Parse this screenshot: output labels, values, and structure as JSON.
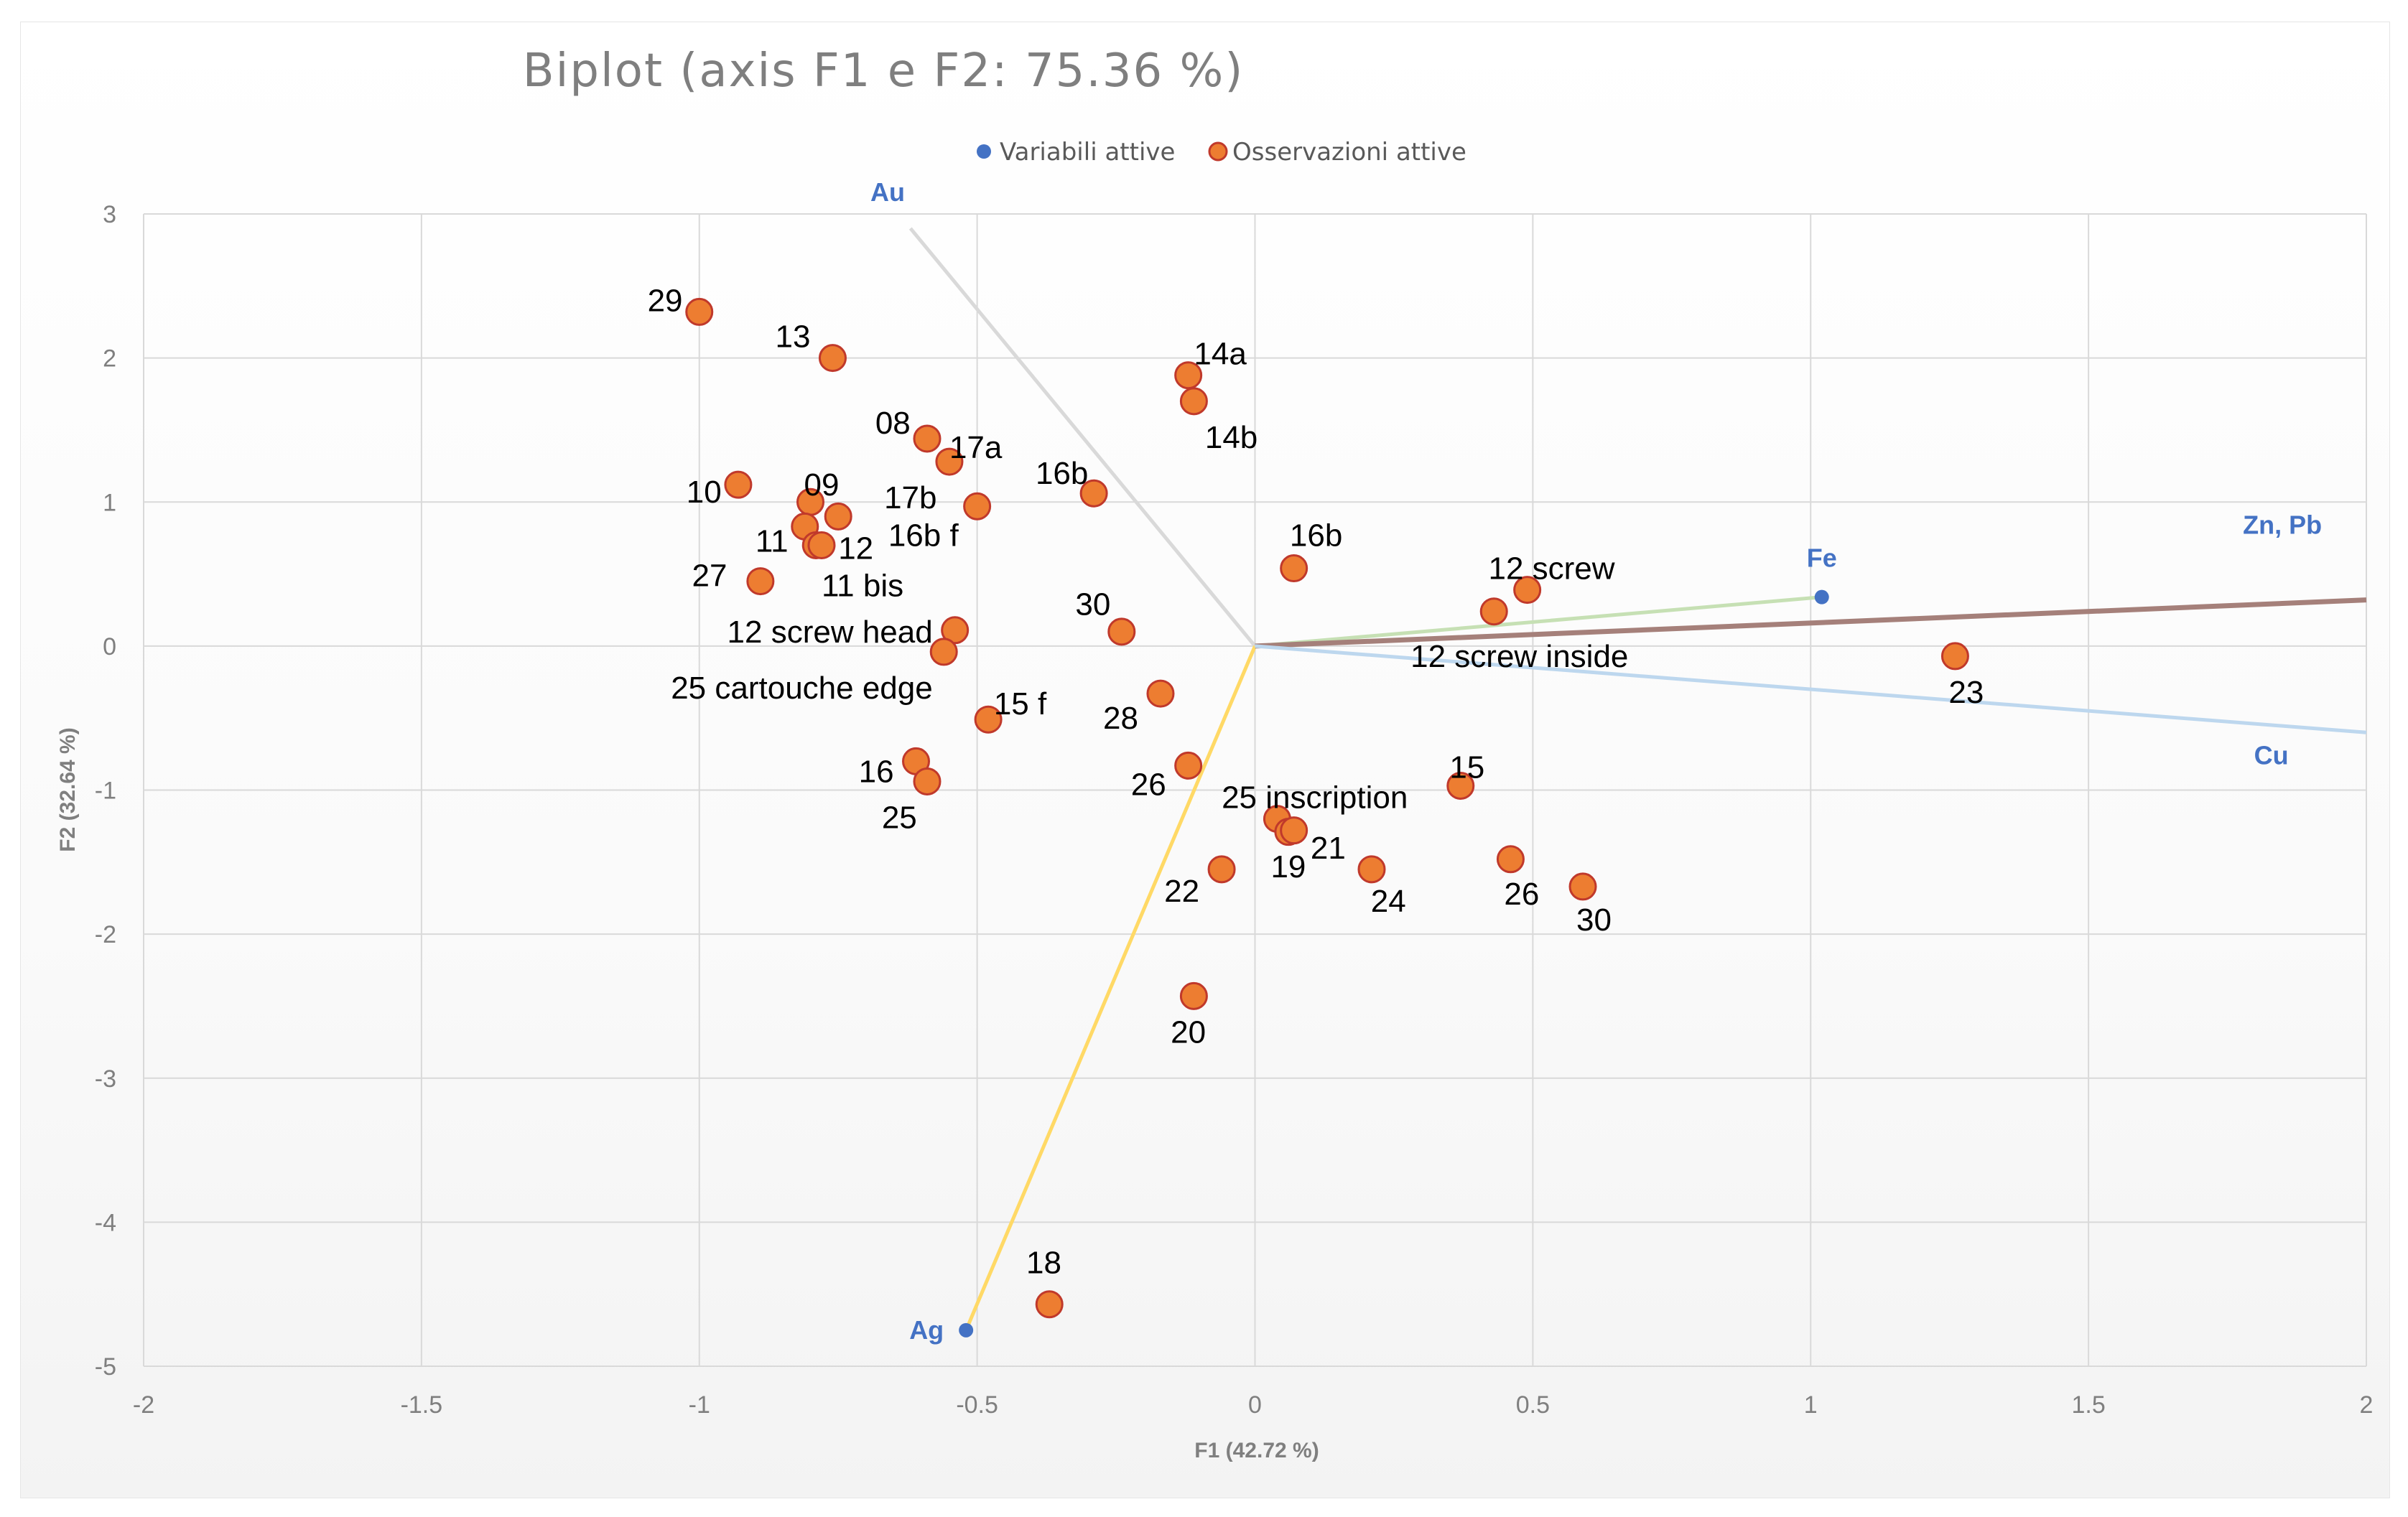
{
  "chart_data": {
    "type": "scatter",
    "title": "Biplot (axis F1 e F2: 75.36 %)",
    "xlabel": "F1 (42.72 %)",
    "ylabel": "F2 (32.64 %)",
    "xlim": [
      -2,
      2
    ],
    "ylim": [
      -5,
      3
    ],
    "x_ticks": [
      -2,
      -1.5,
      -1,
      -0.5,
      0,
      0.5,
      1,
      1.5,
      2
    ],
    "x_tick_labels": [
      "-2",
      "-1.5",
      "-1",
      "-0.5",
      "0",
      "0.5",
      "1",
      "1.5",
      "2"
    ],
    "y_ticks": [
      -5,
      -4,
      -3,
      -2,
      -1,
      0,
      1,
      2,
      3
    ],
    "y_tick_labels": [
      "-5",
      "-4",
      "-3",
      "-2",
      "-1",
      "0",
      "1",
      "2",
      "3"
    ],
    "grid": true,
    "legend": {
      "position": "top-center",
      "entries": [
        {
          "name": "Variabili attive",
          "color": "#4472c4"
        },
        {
          "name": "Osservazioni attive",
          "color": "#ed7d31"
        }
      ]
    },
    "variables": [
      {
        "name": "Au",
        "x": -0.62,
        "y": 2.9,
        "line_color": "#d9d9d9",
        "show_point": false,
        "label_anchor": "end",
        "label_dx": -0.01,
        "label_dy": 0.25
      },
      {
        "name": "Ag",
        "x": -0.52,
        "y": -4.75,
        "line_color": "#ffd966",
        "show_point": true,
        "label_anchor": "end",
        "label_dx": -0.04,
        "label_dy": 0.0
      },
      {
        "name": "Fe",
        "x": 1.02,
        "y": 0.34,
        "line_color": "#c6e0b4",
        "show_point": true,
        "label_anchor": "middle",
        "label_dx": 0.0,
        "label_dy": 0.27
      },
      {
        "name": "Zn, Pb",
        "x": 2.0,
        "y": 0.32,
        "line_color": "#a5807a",
        "show_point": false,
        "label_anchor": "end",
        "label_dx": -0.08,
        "label_dy": 0.52
      },
      {
        "name": "Cu",
        "x": 2.0,
        "y": -0.6,
        "line_color": "#bdd7ee",
        "show_point": false,
        "label_anchor": "end",
        "label_dx": -0.14,
        "label_dy": -0.16
      }
    ],
    "observations": [
      {
        "label": "29",
        "x": -1.0,
        "y": 2.32,
        "lx": -1.03,
        "ly": 2.4,
        "anchor": "end"
      },
      {
        "label": "13",
        "x": -0.76,
        "y": 2.0,
        "lx": -0.8,
        "ly": 2.15,
        "anchor": "end"
      },
      {
        "label": "14a",
        "x": -0.12,
        "y": 1.88,
        "lx": -0.11,
        "ly": 2.03,
        "anchor": "start"
      },
      {
        "label": "14b",
        "x": -0.11,
        "y": 1.7,
        "lx": -0.09,
        "ly": 1.45,
        "anchor": "start"
      },
      {
        "label": "08",
        "x": -0.59,
        "y": 1.44,
        "lx": -0.62,
        "ly": 1.55,
        "anchor": "end"
      },
      {
        "label": "17a",
        "x": -0.55,
        "y": 1.28,
        "lx": -0.55,
        "ly": 1.38,
        "anchor": "start"
      },
      {
        "label": "16b",
        "x": -0.29,
        "y": 1.06,
        "lx": -0.3,
        "ly": 1.2,
        "anchor": "end"
      },
      {
        "label": "10",
        "x": -0.93,
        "y": 1.12,
        "lx": -0.96,
        "ly": 1.07,
        "anchor": "end"
      },
      {
        "label": "09",
        "x": -0.8,
        "y": 1.0,
        "lx": -0.78,
        "ly": 1.12,
        "anchor": "middle"
      },
      {
        "label": "17b",
        "x": -0.75,
        "y": 0.9,
        "lx": -0.62,
        "ly": 1.03,
        "anchor": "middle"
      },
      {
        "label": "16b f",
        "x": -0.5,
        "y": 0.97,
        "lx": -0.66,
        "ly": 0.77,
        "anchor": "start"
      },
      {
        "label": "11",
        "x": -0.81,
        "y": 0.83,
        "lx": -0.84,
        "ly": 0.73,
        "anchor": "end"
      },
      {
        "label": "12",
        "x": -0.79,
        "y": 0.7,
        "lx": -0.75,
        "ly": 0.68,
        "anchor": "start"
      },
      {
        "label": "11 bis",
        "x": -0.78,
        "y": 0.7,
        "lx": -0.78,
        "ly": 0.42,
        "anchor": "start"
      },
      {
        "label": "27",
        "x": -0.89,
        "y": 0.45,
        "lx": -0.95,
        "ly": 0.49,
        "anchor": "end"
      },
      {
        "label": "16b",
        "x": 0.07,
        "y": 0.54,
        "lx": 0.11,
        "ly": 0.77,
        "anchor": "middle"
      },
      {
        "label": "12 screw",
        "x": 0.49,
        "y": 0.39,
        "lx": 0.42,
        "ly": 0.54,
        "anchor": "start"
      },
      {
        "label": "12 screw inside",
        "x": 0.43,
        "y": 0.24,
        "lx": 0.28,
        "ly": -0.07,
        "anchor": "start"
      },
      {
        "label": "30",
        "x": -0.24,
        "y": 0.1,
        "lx": -0.26,
        "ly": 0.29,
        "anchor": "end"
      },
      {
        "label": "12 screw head",
        "x": -0.54,
        "y": 0.11,
        "lx": -0.58,
        "ly": 0.1,
        "anchor": "end"
      },
      {
        "label": "25 cartouche edge",
        "x": -0.56,
        "y": -0.04,
        "lx": -0.58,
        "ly": -0.29,
        "anchor": "end"
      },
      {
        "label": "23",
        "x": 1.26,
        "y": -0.07,
        "lx": 1.28,
        "ly": -0.32,
        "anchor": "middle"
      },
      {
        "label": "15 f",
        "x": -0.48,
        "y": -0.51,
        "lx": -0.47,
        "ly": -0.4,
        "anchor": "start"
      },
      {
        "label": "28",
        "x": -0.17,
        "y": -0.33,
        "lx": -0.21,
        "ly": -0.5,
        "anchor": "end"
      },
      {
        "label": "16",
        "x": -0.61,
        "y": -0.8,
        "lx": -0.65,
        "ly": -0.87,
        "anchor": "end"
      },
      {
        "label": "25",
        "x": -0.59,
        "y": -0.94,
        "lx": -0.64,
        "ly": -1.19,
        "anchor": "middle"
      },
      {
        "label": "26",
        "x": -0.12,
        "y": -0.83,
        "lx": -0.16,
        "ly": -0.96,
        "anchor": "end"
      },
      {
        "label": "15",
        "x": 0.37,
        "y": -0.97,
        "lx": 0.35,
        "ly": -0.84,
        "anchor": "start"
      },
      {
        "label": "25 inscription",
        "x": 0.04,
        "y": -1.2,
        "lx": -0.06,
        "ly": -1.05,
        "anchor": "start"
      },
      {
        "label": "21",
        "x": 0.06,
        "y": -1.29,
        "lx": 0.1,
        "ly": -1.4,
        "anchor": "start"
      },
      {
        "label": "19",
        "x": 0.07,
        "y": -1.28,
        "lx": 0.06,
        "ly": -1.53,
        "anchor": "middle"
      },
      {
        "label": "22",
        "x": -0.06,
        "y": -1.55,
        "lx": -0.1,
        "ly": -1.7,
        "anchor": "end"
      },
      {
        "label": "24",
        "x": 0.21,
        "y": -1.55,
        "lx": 0.24,
        "ly": -1.77,
        "anchor": "middle"
      },
      {
        "label": "26",
        "x": 0.46,
        "y": -1.48,
        "lx": 0.48,
        "ly": -1.72,
        "anchor": "middle"
      },
      {
        "label": "30",
        "x": 0.59,
        "y": -1.67,
        "lx": 0.61,
        "ly": -1.9,
        "anchor": "middle"
      },
      {
        "label": "20",
        "x": -0.11,
        "y": -2.43,
        "lx": -0.12,
        "ly": -2.68,
        "anchor": "middle"
      },
      {
        "label": "18",
        "x": -0.37,
        "y": -4.57,
        "lx": -0.38,
        "ly": -4.28,
        "anchor": "middle"
      }
    ]
  }
}
